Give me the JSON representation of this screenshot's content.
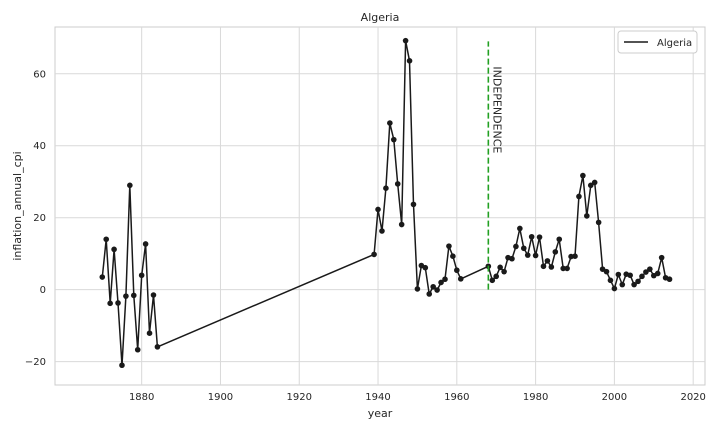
{
  "chart_data": {
    "type": "line",
    "title": "Algeria",
    "xlabel": "year",
    "ylabel": "inflation_annual_cpi",
    "xlim": [
      1858,
      2023
    ],
    "ylim": [
      -26.5,
      73
    ],
    "xticks": [
      1880,
      1900,
      1920,
      1940,
      1960,
      1980,
      2000,
      2020
    ],
    "yticks": [
      -20,
      0,
      20,
      40,
      60
    ],
    "grid": true,
    "legend": {
      "position": "top-right",
      "entries": [
        "Algeria"
      ]
    },
    "series": [
      {
        "name": "Algeria",
        "color": "#1a1a1a",
        "x": [
          1870,
          1871,
          1872,
          1873,
          1874,
          1875,
          1876,
          1877,
          1878,
          1879,
          1880,
          1881,
          1882,
          1883,
          1884,
          1939,
          1940,
          1941,
          1942,
          1943,
          1944,
          1945,
          1946,
          1947,
          1948,
          1949,
          1950,
          1951,
          1952,
          1953,
          1954,
          1955,
          1956,
          1957,
          1958,
          1959,
          1960,
          1961,
          1968,
          1969,
          1970,
          1971,
          1972,
          1973,
          1974,
          1975,
          1976,
          1977,
          1978,
          1979,
          1980,
          1981,
          1982,
          1983,
          1984,
          1985,
          1986,
          1987,
          1988,
          1989,
          1990,
          1991,
          1992,
          1993,
          1994,
          1995,
          1996,
          1997,
          1998,
          1999,
          2000,
          2001,
          2002,
          2003,
          2004,
          2005,
          2006,
          2007,
          2008,
          2009,
          2010,
          2011,
          2012,
          2013,
          2014
        ],
        "y": [
          3.5,
          14,
          -3.8,
          11.2,
          -3.7,
          -21,
          -1.8,
          29,
          -1.6,
          -16.7,
          4,
          12.7,
          -12.1,
          -1.5,
          -15.9,
          9.8,
          22.3,
          16.3,
          28.2,
          46.3,
          41.7,
          29.4,
          18.1,
          69.2,
          63.6,
          23.7,
          0.2,
          6.7,
          6.1,
          -1.2,
          0.8,
          -0.1,
          2,
          2.9,
          12.1,
          9.3,
          5.4,
          3,
          6.5,
          2.6,
          3.7,
          6.2,
          5,
          8.9,
          8.6,
          12,
          17,
          11.5,
          9.6,
          14.7,
          9.5,
          14.6,
          6.5,
          8,
          6.3,
          10.5,
          14,
          5.9,
          5.9,
          9.2,
          9.3,
          25.9,
          31.7,
          20.5,
          29,
          29.8,
          18.7,
          5.7,
          5,
          2.6,
          0.3,
          4.2,
          1.4,
          4.3,
          4,
          1.4,
          2.3,
          3.7,
          4.9,
          5.7,
          3.9,
          4.5,
          8.9,
          3.3,
          2.9
        ]
      }
    ],
    "annotation": {
      "text": "INDEPENDENCE",
      "x": 1968,
      "y_range": [
        0,
        69
      ],
      "color": "#22a022"
    }
  }
}
